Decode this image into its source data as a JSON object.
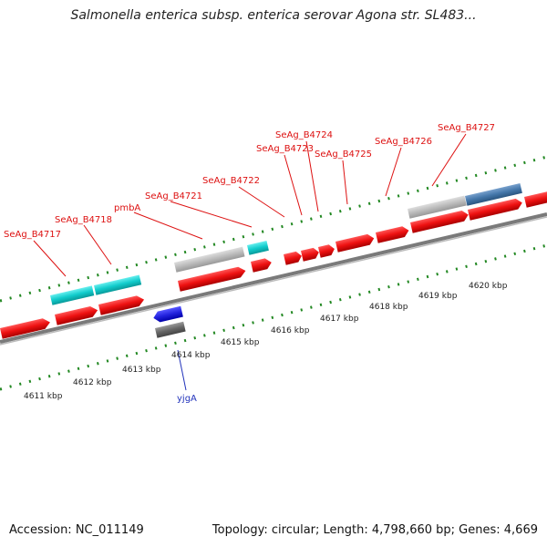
{
  "header": {
    "title": "Salmonella enterica subsp. enterica serovar Agona str. SL483..."
  },
  "footer": {
    "accession": "Accession: NC_011149",
    "summary": "Topology: circular; Length: 4,798,660 bp; Genes: 4,669"
  },
  "colors": {
    "gene_forward": "#ee1111",
    "gene_other": "#2222dd",
    "rna_cyan": "#11cccc",
    "feature_gray": "#b8b8b8",
    "feature_dark": "#666666",
    "feature_blue": "#4477aa",
    "backbone": "#888888",
    "tick": "#228822",
    "label_red": "#dd1111",
    "label_blue": "#2233bb"
  },
  "gene_labels": [
    {
      "id": "seag-b4717",
      "text": "SeAg_B4717"
    },
    {
      "id": "seag-b4718",
      "text": "SeAg_B4718"
    },
    {
      "id": "pmba",
      "text": "pmbA"
    },
    {
      "id": "seag-b4721",
      "text": "SeAg_B4721"
    },
    {
      "id": "seag-b4722",
      "text": "SeAg_B4722"
    },
    {
      "id": "seag-b4723",
      "text": "SeAg_B4723"
    },
    {
      "id": "seag-b4724",
      "text": "SeAg_B4724"
    },
    {
      "id": "seag-b4725",
      "text": "SeAg_B4725"
    },
    {
      "id": "seag-b4726",
      "text": "SeAg_B4726"
    },
    {
      "id": "seag-b4727",
      "text": "SeAg_B4727"
    },
    {
      "id": "yjga",
      "text": "yjgA"
    }
  ],
  "kbp_labels": [
    "4611 kbp",
    "4612 kbp",
    "4613 kbp",
    "4614 kbp",
    "4615 kbp",
    "4616 kbp",
    "4617 kbp",
    "4618 kbp",
    "4619 kbp",
    "4620 kbp"
  ]
}
